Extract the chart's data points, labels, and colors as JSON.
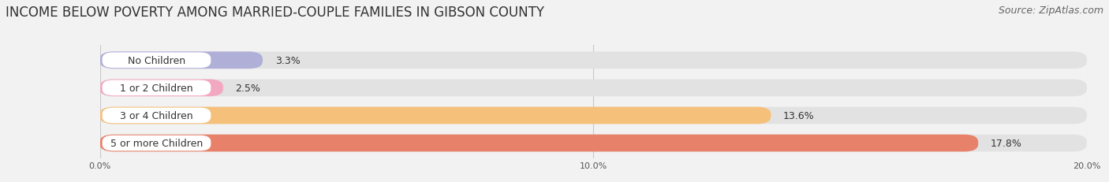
{
  "title": "INCOME BELOW POVERTY AMONG MARRIED-COUPLE FAMILIES IN GIBSON COUNTY",
  "source": "Source: ZipAtlas.com",
  "categories": [
    "No Children",
    "1 or 2 Children",
    "3 or 4 Children",
    "5 or more Children"
  ],
  "values": [
    3.3,
    2.5,
    13.6,
    17.8
  ],
  "bar_colors": [
    "#b0afd8",
    "#f2a8c0",
    "#f5c07a",
    "#e8816a"
  ],
  "label_bg_colors": [
    "#b0afd8",
    "#f2a8c0",
    "#f5c07a",
    "#e8816a"
  ],
  "xlim": [
    0,
    20.0
  ],
  "xticks": [
    0.0,
    10.0,
    20.0
  ],
  "xticklabels": [
    "0.0%",
    "10.0%",
    "20.0%"
  ],
  "background_color": "#f2f2f2",
  "bar_background_color": "#e2e2e2",
  "title_fontsize": 12,
  "source_fontsize": 9,
  "label_fontsize": 9,
  "value_fontsize": 9
}
